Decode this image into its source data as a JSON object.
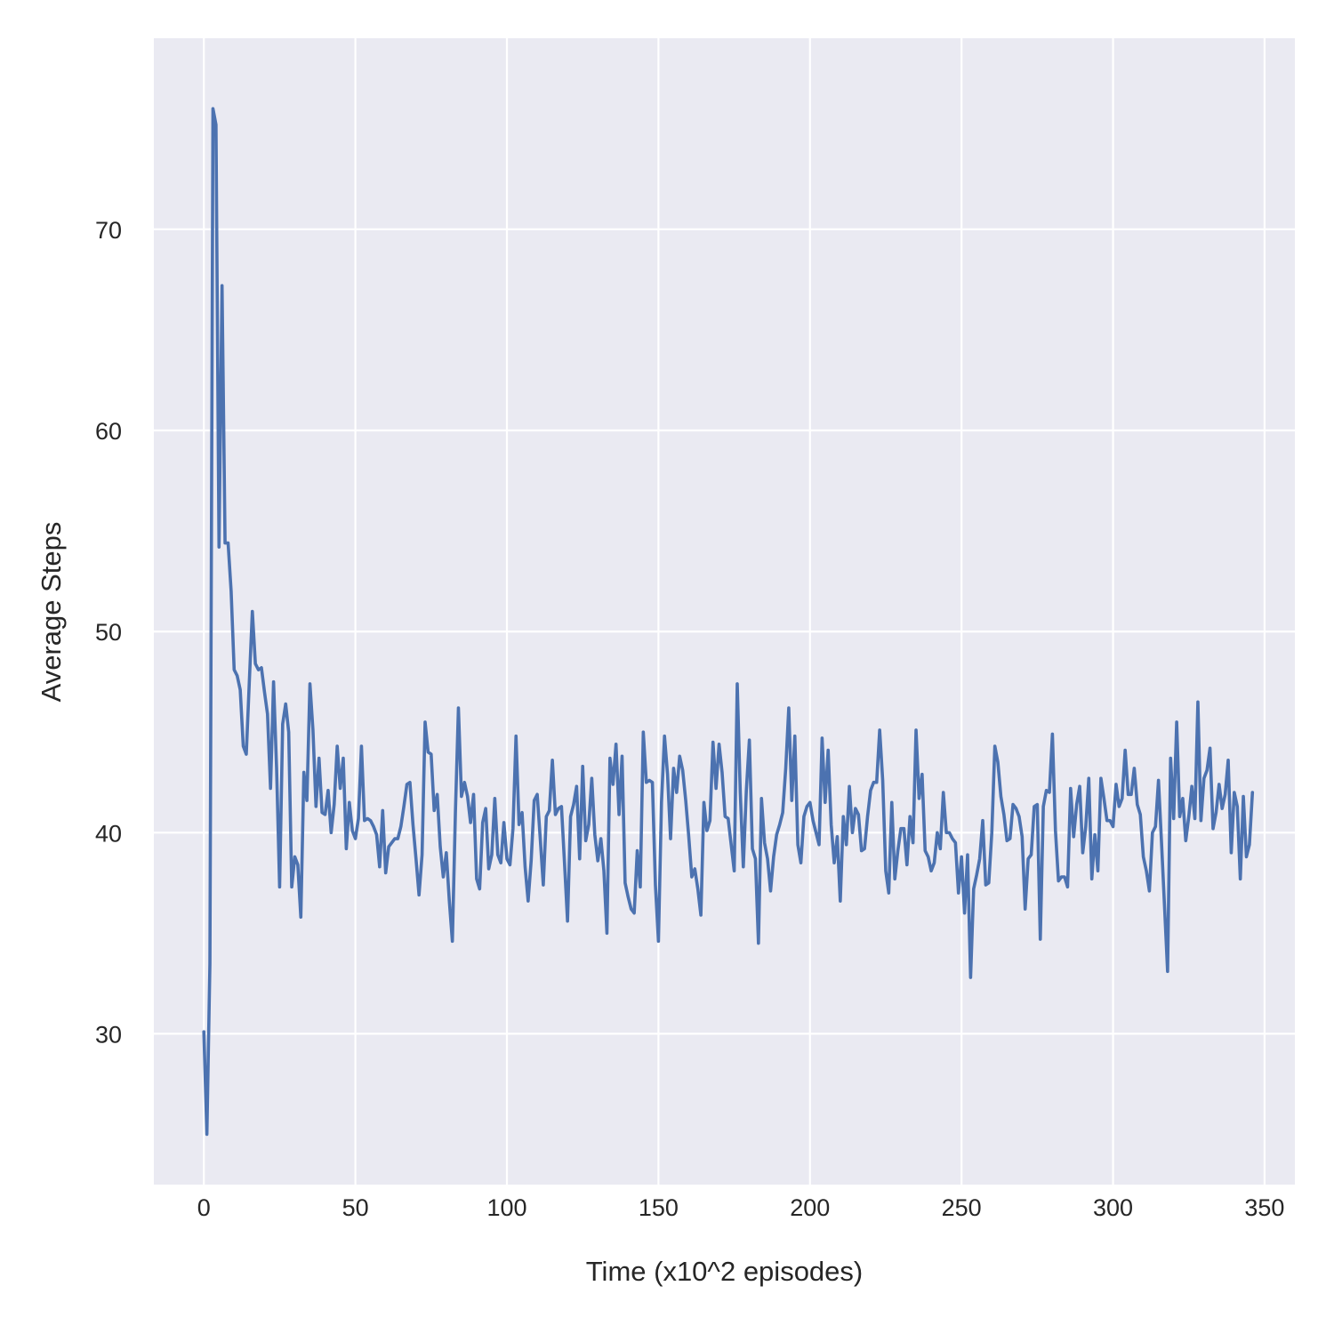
{
  "chart_data": {
    "type": "line",
    "title": "",
    "xlabel": "Time (x10^2 episodes)",
    "ylabel": "Average Steps",
    "xlim": [
      -16.5,
      360
    ],
    "ylim": [
      22.5,
      79.5
    ],
    "xticks": [
      0,
      50,
      100,
      150,
      200,
      250,
      300,
      350
    ],
    "yticks": [
      30,
      40,
      50,
      60,
      70
    ],
    "grid": true,
    "legend": "none",
    "colors": {
      "background": "#eaeaf2",
      "grid": "#ffffff",
      "line": "#4c72b0",
      "text": "#262626"
    },
    "series": [
      {
        "y": [
          30.1,
          25.0,
          33.5,
          76.0,
          75.2,
          54.2,
          67.2,
          54.4,
          54.4,
          52.0,
          48.1,
          47.8,
          47.1,
          44.3,
          43.9,
          47.5,
          51.0,
          48.4,
          48.1,
          48.2,
          47.0,
          45.9,
          42.2,
          47.5,
          43.2,
          37.3,
          45.4,
          46.4,
          45.0,
          37.3,
          38.8,
          38.4,
          35.8,
          43.0,
          41.6,
          47.4,
          45.1,
          41.3,
          43.7,
          41.0,
          40.9,
          42.1,
          40.0,
          41.4,
          44.3,
          42.2,
          43.7,
          39.2,
          41.5,
          40.1,
          39.7,
          40.7,
          44.3,
          40.6,
          40.7,
          40.6,
          40.3,
          39.9,
          38.3,
          41.1,
          38.0,
          39.3,
          39.5,
          39.7,
          39.7,
          40.3,
          41.3,
          42.4,
          42.5,
          40.4,
          38.7,
          36.9,
          38.9,
          45.5,
          44.0,
          43.9,
          41.1,
          41.9,
          39.3,
          37.8,
          39.0,
          36.6,
          34.6,
          41.0,
          46.2,
          41.8,
          42.5,
          41.8,
          40.5,
          41.9,
          37.7,
          37.2,
          40.5,
          41.2,
          38.2,
          38.9,
          41.7,
          38.9,
          38.5,
          40.5,
          38.7,
          38.4,
          40.2,
          44.8,
          40.4,
          41.0,
          38.3,
          36.6,
          38.6,
          41.6,
          41.9,
          39.7,
          37.4,
          40.8,
          41.1,
          43.6,
          40.9,
          41.2,
          41.3,
          38.5,
          35.6,
          40.8,
          41.4,
          42.3,
          38.7,
          43.3,
          39.6,
          40.4,
          42.7,
          39.9,
          38.6,
          39.7,
          38.1,
          35.0,
          43.7,
          42.4,
          44.4,
          40.9,
          43.8,
          37.5,
          36.8,
          36.2,
          36.0,
          39.1,
          37.3,
          45.0,
          42.5,
          42.6,
          42.5,
          37.4,
          34.6,
          41.5,
          44.8,
          42.9,
          39.7,
          43.2,
          42.0,
          43.8,
          43.1,
          41.6,
          39.8,
          37.8,
          38.2,
          37.2,
          35.9,
          41.5,
          40.1,
          40.6,
          44.5,
          42.2,
          44.4,
          43.0,
          40.8,
          40.7,
          39.4,
          38.1,
          47.4,
          42.0,
          38.3,
          42.1,
          44.6,
          39.2,
          38.7,
          34.5,
          41.7,
          39.5,
          38.7,
          37.1,
          38.8,
          39.9,
          40.4,
          41.0,
          43.2,
          46.2,
          41.6,
          44.8,
          39.4,
          38.5,
          40.8,
          41.3,
          41.5,
          40.6,
          40.0,
          39.4,
          44.7,
          41.5,
          44.1,
          40.4,
          38.5,
          39.8,
          36.6,
          40.8,
          39.4,
          42.3,
          40.0,
          41.2,
          40.9,
          39.1,
          39.2,
          40.8,
          42.1,
          42.5,
          42.5,
          45.1,
          42.6,
          38.1,
          37.0,
          41.5,
          37.7,
          39.1,
          40.2,
          40.2,
          38.4,
          40.8,
          39.5,
          45.1,
          41.7,
          42.9,
          39.1,
          38.8,
          38.1,
          38.5,
          40.0,
          39.2,
          42.0,
          40.0,
          40.0,
          39.7,
          39.5,
          37.0,
          38.8,
          36.0,
          38.9,
          32.8,
          37.2,
          37.9,
          38.7,
          40.6,
          37.4,
          37.5,
          40.0,
          44.3,
          43.5,
          41.8,
          40.9,
          39.6,
          39.7,
          41.4,
          41.2,
          40.8,
          39.8,
          36.2,
          38.7,
          38.9,
          41.3,
          41.4,
          34.7,
          41.3,
          42.1,
          42.0,
          44.9,
          40.1,
          37.6,
          37.8,
          37.8,
          37.3,
          42.2,
          39.8,
          41.4,
          42.3,
          39.0,
          40.3,
          42.7,
          37.7,
          39.9,
          38.1,
          42.7,
          41.7,
          40.6,
          40.6,
          40.3,
          42.4,
          41.3,
          41.7,
          44.1,
          41.9,
          41.9,
          43.2,
          41.4,
          40.9,
          38.8,
          38.1,
          37.1,
          40.0,
          40.3,
          42.6,
          39.5,
          36.3,
          33.1,
          43.7,
          40.7,
          45.5,
          40.8,
          41.7,
          39.6,
          40.8,
          42.3,
          40.7,
          46.5,
          40.6,
          42.7,
          43.1,
          44.2,
          40.2,
          41.0,
          42.4,
          41.2,
          41.9,
          43.6,
          39.0,
          42.0,
          41.3,
          37.7,
          41.8,
          38.8,
          39.4,
          42.0
        ]
      }
    ]
  }
}
